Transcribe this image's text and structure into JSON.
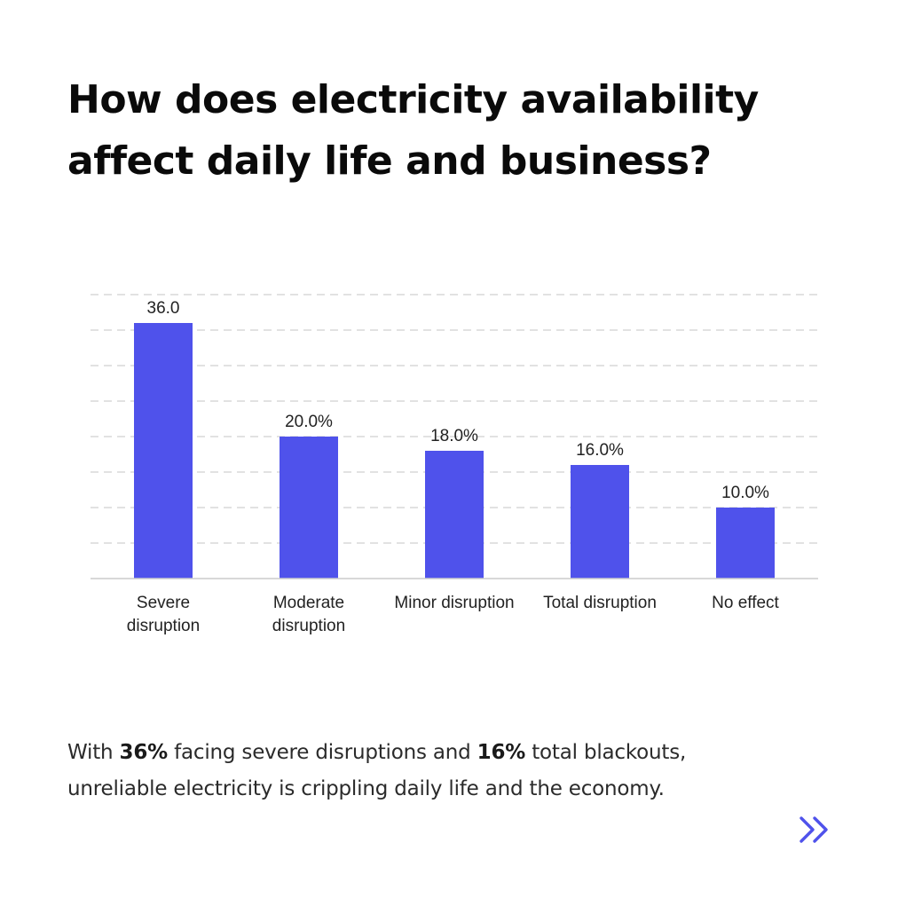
{
  "header": {
    "title_line1": "How does electricity availability",
    "title_line2": "affect daily life and business?"
  },
  "chart_data": {
    "type": "bar",
    "categories": [
      [
        "Severe",
        "disruption"
      ],
      [
        "Moderate",
        "disruption"
      ],
      [
        "Minor disruption"
      ],
      [
        "Total disruption"
      ],
      [
        "No effect"
      ]
    ],
    "values": [
      36.0,
      20.0,
      18.0,
      16.0,
      10.0
    ],
    "data_labels": [
      "36.0",
      "20.0%",
      "18.0%",
      "16.0%",
      "10.0%"
    ],
    "ylim": [
      0,
      40
    ],
    "grid": true,
    "bar_color": "#4f52eb",
    "grid_color": "#d9d9d9",
    "axis_color": "#cccccc"
  },
  "footer": {
    "text_1": "With ",
    "bold_1": "36%",
    "text_2": " facing severe disruptions and ",
    "bold_2": "16%",
    "text_3": " total blackouts,",
    "line_2": "unreliable electricity is crippling daily life and the economy."
  },
  "navigation": {
    "next_icon": "double-chevron-right-icon",
    "icon_color": "#4f52eb"
  }
}
